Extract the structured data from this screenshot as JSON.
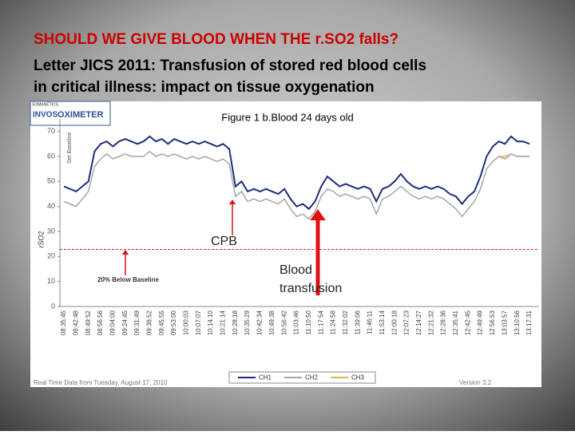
{
  "slide": {
    "title_red": "SHOULD WE GIVE BLOOD WHEN THE r.SO2 falls?",
    "title_lines": [
      "Letter JICS 2011: Transfusion of stored red blood cells",
      "in critical illness: impact on tissue oxygenation"
    ],
    "logo": [
      "SOMANETICS",
      "INVOS",
      "OXIMETER"
    ],
    "footer_left": "Real Time Data from Tuesday, August 17, 2010",
    "footer_right": "Version 3.2"
  },
  "chart_data": {
    "type": "line",
    "title": "Figure 1 b.Blood 24 days old",
    "y_label": "rSO2",
    "categories": [
      "08:35:45",
      null,
      "08:42:48",
      null,
      "08:49:52",
      null,
      "08:56:56",
      null,
      "09:04:00",
      null,
      "09:24:45",
      null,
      "09:31:49",
      null,
      "09:38:52",
      null,
      "09:45:55",
      null,
      "09:53:00",
      null,
      "10:00:03",
      null,
      "10:07:07",
      null,
      "10:14:10",
      null,
      "10:21:14",
      null,
      "10:28:18",
      null,
      "10:35:29",
      null,
      "10:42:34",
      null,
      "10:49:38",
      null,
      "10:56:42",
      null,
      "11:03:46",
      null,
      "11:10:50",
      null,
      "11:17:54",
      null,
      "11:24:58",
      null,
      "11:32:02",
      null,
      "11:39:06",
      null,
      "11:46:11",
      null,
      "11:53:14",
      null,
      "12:00:18",
      null,
      "12:07:23",
      null,
      "12:14:27",
      null,
      "12:21:32",
      null,
      "12:28:36",
      null,
      "12:35:41",
      null,
      "12:42:45",
      null,
      "12:49:49",
      null,
      "12:56:53",
      null,
      "13:03:57",
      null,
      "13:10:56",
      null,
      "13:17:31"
    ],
    "series": [
      {
        "name": "CH1",
        "color": "#1f2d7a",
        "values": [
          48,
          47,
          46,
          48,
          50,
          62,
          65,
          66,
          64,
          66,
          67,
          66,
          65,
          66,
          68,
          66,
          67,
          65,
          67,
          66,
          65,
          66,
          65,
          66,
          65,
          64,
          65,
          63,
          48,
          50,
          46,
          47,
          46,
          47,
          46,
          45,
          47,
          43,
          40,
          41,
          39,
          42,
          48,
          52,
          50,
          48,
          49,
          48,
          47,
          48,
          47,
          42,
          47,
          48,
          50,
          53,
          50,
          48,
          47,
          48,
          47,
          48,
          47,
          45,
          44,
          41,
          44,
          46,
          52,
          60,
          64,
          66,
          65,
          68,
          66,
          66,
          65
        ]
      },
      {
        "name": "CH2",
        "color": "#a6a6a6",
        "values": [
          42,
          41,
          40,
          43,
          46,
          56,
          59,
          61,
          59,
          60,
          61,
          60,
          60,
          60,
          62,
          60,
          61,
          60,
          61,
          60,
          59,
          60,
          59,
          60,
          59,
          58,
          59,
          57,
          44,
          46,
          42,
          43,
          42,
          43,
          42,
          41,
          43,
          39,
          36,
          37,
          35,
          38,
          44,
          47,
          46,
          44,
          45,
          44,
          43,
          44,
          43,
          37,
          43,
          44,
          46,
          48,
          46,
          44,
          43,
          44,
          43,
          44,
          43,
          41,
          39,
          36,
          39,
          42,
          47,
          55,
          58,
          60,
          59,
          61,
          60,
          60,
          60
        ]
      },
      {
        "name": "CH3",
        "color": "#e0b84a",
        "values": [
          null,
          null,
          null,
          null,
          null,
          null,
          null,
          null,
          null,
          null,
          null,
          null,
          null,
          null,
          null,
          null,
          null,
          null,
          null,
          null,
          null,
          null,
          null,
          null,
          null,
          null,
          null,
          null,
          null,
          null,
          null,
          null,
          null,
          null,
          null,
          null,
          null,
          null,
          null,
          null,
          null,
          null,
          null,
          null,
          null,
          null,
          null,
          null,
          null,
          null,
          null,
          null,
          null,
          null,
          null,
          null,
          null,
          null,
          null,
          null,
          null,
          null,
          null,
          null,
          null,
          null,
          null,
          null,
          null,
          null,
          null,
          60,
          60,
          61,
          60,
          60,
          60
        ]
      }
    ],
    "ylim": [
      0,
      75
    ],
    "yticks": [
      0,
      10,
      20,
      30,
      40,
      50,
      60,
      70
    ],
    "baseline": {
      "value": 22.8,
      "label": "20% Below Baseline"
    },
    "annotations": [
      "Set Baseline",
      "CPB",
      "Blood",
      "transfusion"
    ]
  }
}
